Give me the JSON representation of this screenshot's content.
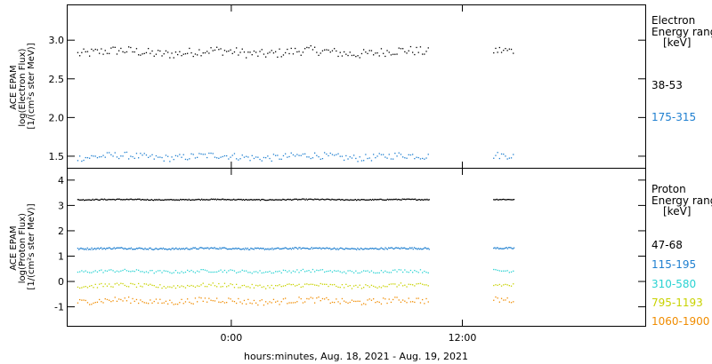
{
  "chart_data": [
    {
      "type": "scatter",
      "panel": "electron",
      "ylabel_lines": [
        "ACE EPAM",
        "log(Electron Flux)",
        "[1/(cm²s ster MeV)]"
      ],
      "ylim": [
        1.35,
        3.45
      ],
      "yticks": [
        "3.0",
        "2.5",
        "2.0",
        "1.5"
      ],
      "ytick_values": [
        3.0,
        2.5,
        2.0,
        1.5
      ],
      "legend_title": [
        "Electron",
        "Energy ranges",
        "[keV]"
      ],
      "series": [
        {
          "name": "38-53",
          "color": "#000000",
          "level": 2.85,
          "spread": 0.06
        },
        {
          "name": "175-315",
          "color": "#1e7fd0",
          "level": 1.5,
          "spread": 0.045
        }
      ]
    },
    {
      "type": "scatter",
      "panel": "proton",
      "ylabel_lines": [
        "ACE EPAM",
        "log(Proton Flux)",
        "[1/(cm²s ster MeV)]"
      ],
      "ylim": [
        -1.75,
        4.45
      ],
      "yticks": [
        "4",
        "3",
        "2",
        "1",
        "0",
        "-1"
      ],
      "ytick_values": [
        4,
        3,
        2,
        1,
        0,
        -1
      ],
      "legend_title": [
        "Proton",
        "Energy ranges",
        "[keV]"
      ],
      "series": [
        {
          "name": "47-68",
          "color": "#000000",
          "level": 3.25,
          "spread": 0.02
        },
        {
          "name": "115-195",
          "color": "#1e7fd0",
          "level": 1.32,
          "spread": 0.035
        },
        {
          "name": "310-580",
          "color": "#28d2d2",
          "level": 0.42,
          "spread": 0.06
        },
        {
          "name": "795-1193",
          "color": "#c8d200",
          "level": -0.15,
          "spread": 0.08
        },
        {
          "name": "1060-1900",
          "color": "#f08c00",
          "level": -0.75,
          "spread": 0.12
        }
      ]
    }
  ],
  "x_axis": {
    "ticks": [
      "0:00",
      "12:00"
    ],
    "tick_hours": [
      0,
      12
    ],
    "xlim_hours": [
      -8.5,
      21.5
    ],
    "data_ranges_hours": [
      [
        -8.0,
        10.3
      ],
      [
        13.6,
        14.7
      ]
    ],
    "xlabel": "hours:minutes, Aug. 18, 2021 - Aug. 19, 2021"
  }
}
